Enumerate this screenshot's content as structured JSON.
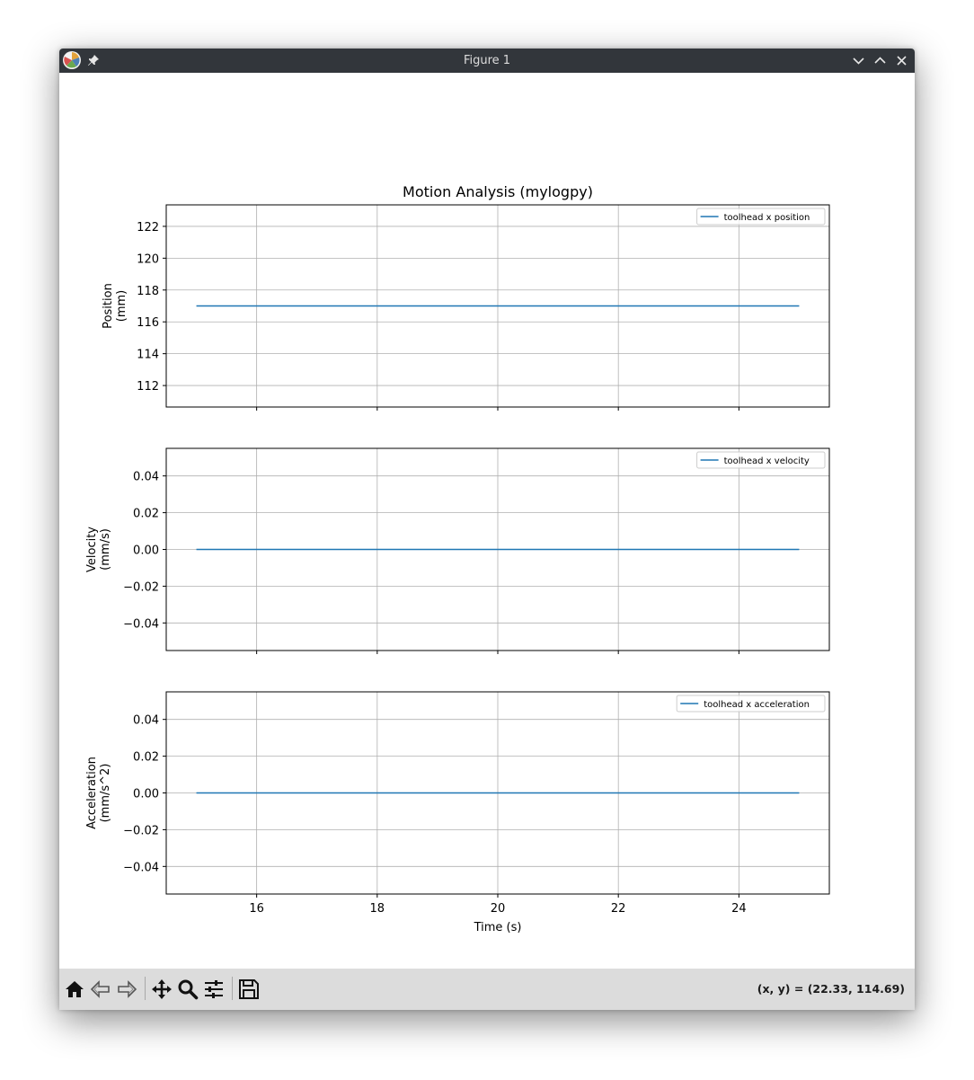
{
  "window": {
    "title": "Figure 1"
  },
  "toolbar": {
    "buttons": [
      {
        "name": "home",
        "icon": "home-icon"
      },
      {
        "name": "back",
        "icon": "back-arrow-icon"
      },
      {
        "name": "forward",
        "icon": "forward-arrow-icon"
      },
      {
        "name": "pan",
        "icon": "move-icon"
      },
      {
        "name": "zoom",
        "icon": "magnifier-icon"
      },
      {
        "name": "configure",
        "icon": "sliders-icon"
      },
      {
        "name": "save",
        "icon": "floppy-disk-icon"
      }
    ],
    "coords": "(x, y) = (22.33, 114.69)"
  },
  "chart_data": {
    "type": "line",
    "title": "Motion Analysis (mylogpy)",
    "xlabel": "Time (s)",
    "xlim": [
      14.5,
      25.5
    ],
    "xticks": [
      16,
      18,
      20,
      22,
      24
    ],
    "xtick_labels": [
      "16",
      "18",
      "20",
      "22",
      "24"
    ],
    "grid": true,
    "line_color": "#1f77b4",
    "subplots": [
      {
        "ylabel_lines": [
          "Position",
          "(mm)"
        ],
        "ylim": [
          110.65,
          123.35
        ],
        "yticks": [
          112,
          114,
          116,
          118,
          120,
          122
        ],
        "ytick_labels": [
          "112",
          "114",
          "116",
          "118",
          "120",
          "122"
        ],
        "legend": "toolhead x position",
        "legend_location": "upper right",
        "series": [
          {
            "name": "toolhead x position",
            "x": [
              15,
              25
            ],
            "y": [
              117,
              117
            ]
          }
        ]
      },
      {
        "ylabel_lines": [
          "Velocity",
          "(mm/s)"
        ],
        "ylim": [
          -0.055,
          0.055
        ],
        "yticks": [
          -0.04,
          -0.02,
          0.0,
          0.02,
          0.04
        ],
        "ytick_labels": [
          "−0.04",
          "−0.02",
          "0.00",
          "0.02",
          "0.04"
        ],
        "legend": "toolhead x velocity",
        "legend_location": "upper right",
        "series": [
          {
            "name": "toolhead x velocity",
            "x": [
              15,
              25
            ],
            "y": [
              0,
              0
            ]
          }
        ]
      },
      {
        "ylabel_lines": [
          "Acceleration",
          "(mm/s^2)"
        ],
        "ylim": [
          -0.055,
          0.055
        ],
        "yticks": [
          -0.04,
          -0.02,
          0.0,
          0.02,
          0.04
        ],
        "ytick_labels": [
          "−0.04",
          "−0.02",
          "0.00",
          "0.02",
          "0.04"
        ],
        "legend": "toolhead x acceleration",
        "legend_location": "upper right",
        "series": [
          {
            "name": "toolhead x acceleration",
            "x": [
              15,
              25
            ],
            "y": [
              0,
              0
            ]
          }
        ]
      }
    ]
  }
}
